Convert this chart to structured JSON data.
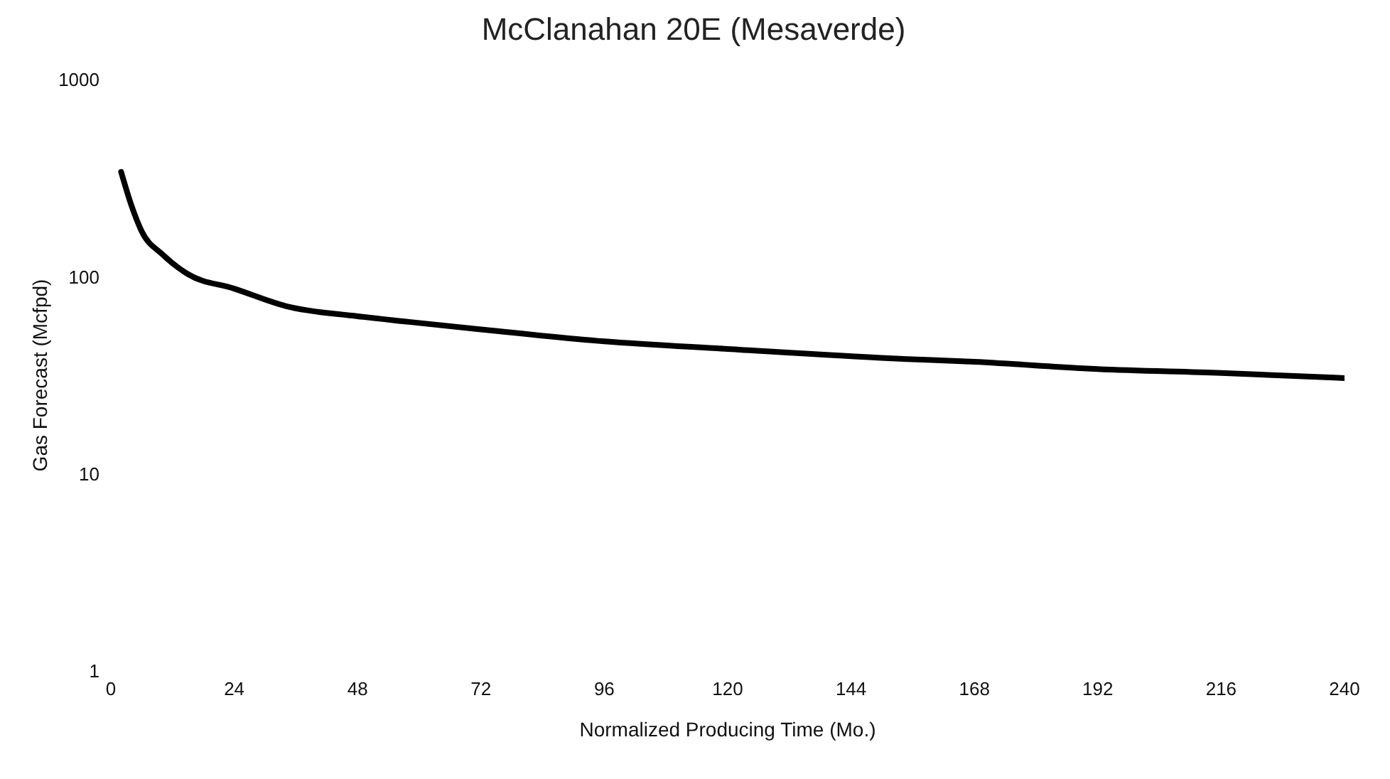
{
  "chart_data": {
    "type": "line",
    "title": "McClanahan 20E (Mesaverde)",
    "xlabel": "Normalized Producing Time (Mo.)",
    "ylabel": "Gas Forecast (Mcfpd)",
    "log": "y",
    "grid": false,
    "legend": false,
    "marker": "none",
    "line_style": "solid",
    "x": [
      2,
      4,
      6,
      10,
      15,
      24,
      34,
      48,
      58,
      72,
      96,
      120,
      152,
      168,
      192,
      216,
      240
    ],
    "series": [
      {
        "color": "#000000",
        "values": [
          340,
          230,
          170,
          130,
          103,
          87,
          71,
          63,
          59,
          54,
          47,
          43,
          38.5,
          37,
          34,
          32.5,
          30.6
        ]
      }
    ],
    "xlim": [
      0,
      240
    ],
    "xticks": [
      0,
      24,
      48,
      72,
      96,
      120,
      144,
      168,
      192,
      216,
      240
    ],
    "ylim": [
      1,
      1000
    ],
    "yticks": [
      1,
      10,
      100,
      1000
    ]
  }
}
